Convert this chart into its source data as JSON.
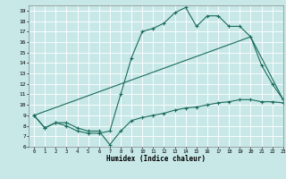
{
  "title": "",
  "xlabel": "Humidex (Indice chaleur)",
  "ylabel": "",
  "bg_color": "#c8e8e8",
  "grid_color": "#ffffff",
  "line_color": "#1a6b5a",
  "xlim": [
    -0.5,
    23
  ],
  "ylim": [
    6,
    19.5
  ],
  "xticks": [
    0,
    1,
    2,
    3,
    4,
    5,
    6,
    7,
    8,
    9,
    10,
    11,
    12,
    13,
    14,
    15,
    16,
    17,
    18,
    19,
    20,
    21,
    22,
    23
  ],
  "yticks": [
    6,
    7,
    8,
    9,
    10,
    11,
    12,
    13,
    14,
    15,
    16,
    17,
    18,
    19
  ],
  "line1_x": [
    0,
    1,
    2,
    3,
    4,
    5,
    6,
    7,
    8,
    9,
    10,
    11,
    12,
    13,
    14,
    15,
    16,
    17,
    18,
    19,
    20,
    21,
    22,
    23
  ],
  "line1_y": [
    9.0,
    7.8,
    8.3,
    8.0,
    7.5,
    7.3,
    7.3,
    7.5,
    11.0,
    14.5,
    17.0,
    17.3,
    17.8,
    18.8,
    19.3,
    17.5,
    18.5,
    18.5,
    17.5,
    17.5,
    16.5,
    13.8,
    12.0,
    10.5
  ],
  "line2_x": [
    0,
    1,
    2,
    3,
    4,
    5,
    6,
    7,
    8,
    9,
    10,
    11,
    12,
    13,
    14,
    15,
    16,
    17,
    18,
    19,
    20,
    21,
    22,
    23
  ],
  "line2_y": [
    9.0,
    7.8,
    8.3,
    8.3,
    7.8,
    7.5,
    7.5,
    6.2,
    7.5,
    8.5,
    8.8,
    9.0,
    9.2,
    9.5,
    9.7,
    9.8,
    10.0,
    10.2,
    10.3,
    10.5,
    10.5,
    10.3,
    10.3,
    10.2
  ],
  "line3_x": [
    0,
    20,
    23
  ],
  "line3_y": [
    9.0,
    16.5,
    10.5
  ]
}
